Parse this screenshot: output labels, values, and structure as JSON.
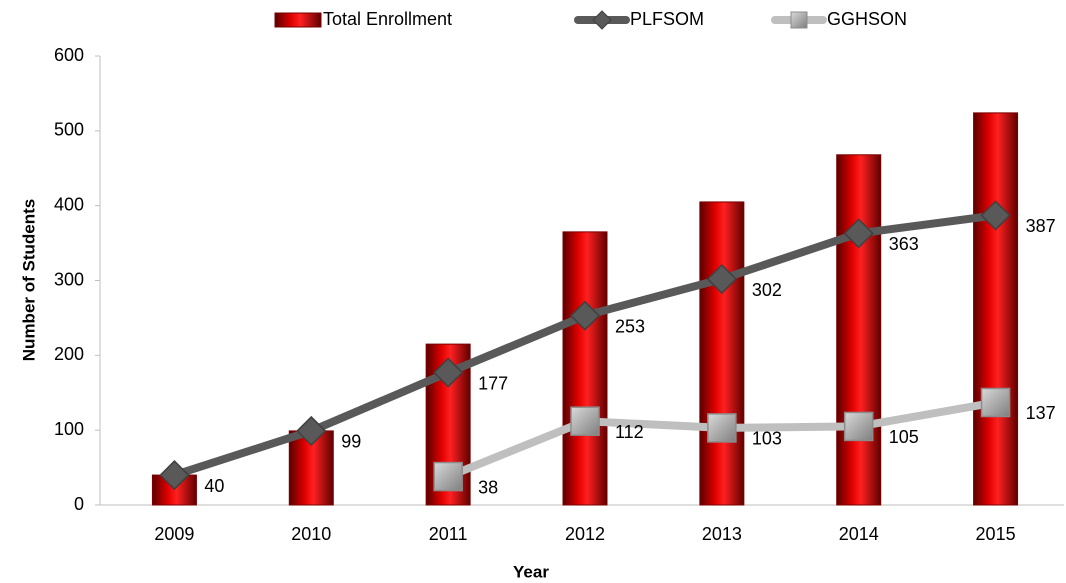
{
  "chart_data": {
    "type": "bar",
    "x_label": "Year",
    "y_label": "Number of Students",
    "categories": [
      "2009",
      "2010",
      "2011",
      "2012",
      "2013",
      "2014",
      "2015"
    ],
    "series": [
      {
        "name": "Total Enrollment",
        "type": "bar",
        "color": "#c00000",
        "values": [
          40,
          99,
          215,
          365,
          405,
          468,
          524
        ]
      },
      {
        "name": "PLFSOM",
        "type": "line",
        "marker": "diamond",
        "color": "#595959",
        "values": [
          40,
          99,
          177,
          253,
          302,
          363,
          387
        ],
        "data_labels": true
      },
      {
        "name": "GGHSON",
        "type": "line",
        "marker": "square",
        "color": "#bfbfbf",
        "values": [
          null,
          null,
          38,
          112,
          103,
          105,
          137
        ],
        "data_labels": true
      }
    ],
    "ylim": [
      0,
      600
    ],
    "yticks": [
      0,
      100,
      200,
      300,
      400,
      500,
      600
    ],
    "grid": false,
    "legend": "top"
  }
}
